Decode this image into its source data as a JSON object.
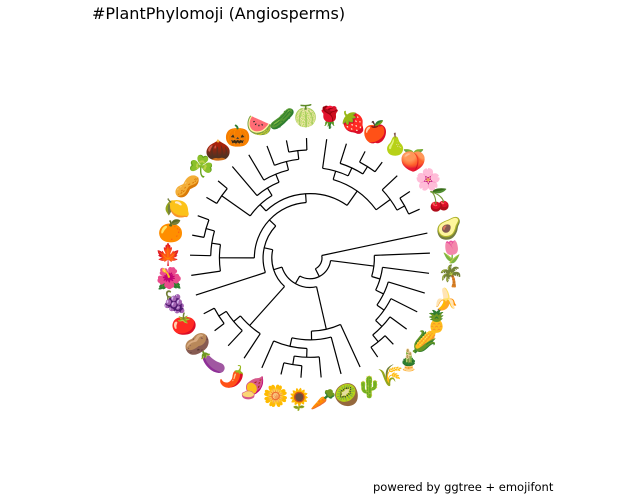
{
  "title": "#PlantPhylomoji (Angiosperms)",
  "caption": "powered by ggtree + emojifont",
  "tips": [
    {
      "id": "avocado",
      "emoji": "🥑"
    },
    {
      "id": "tulip",
      "emoji": "🌷"
    },
    {
      "id": "palm",
      "emoji": "🌴"
    },
    {
      "id": "banana",
      "emoji": "🍌"
    },
    {
      "id": "pineapple",
      "emoji": "🍍"
    },
    {
      "id": "corn",
      "emoji": "🌽"
    },
    {
      "id": "bamboo",
      "emoji": "🎍"
    },
    {
      "id": "rice",
      "emoji": "🌾"
    },
    {
      "id": "cactus",
      "emoji": "🌵"
    },
    {
      "id": "kiwi",
      "emoji": "🥝"
    },
    {
      "id": "carrot",
      "emoji": "🥕"
    },
    {
      "id": "sunflower",
      "emoji": "🌻"
    },
    {
      "id": "daisy",
      "emoji": "🌼"
    },
    {
      "id": "sweet-potato",
      "emoji": "🍠"
    },
    {
      "id": "hot-pepper",
      "emoji": "🌶️"
    },
    {
      "id": "eggplant",
      "emoji": "🍆"
    },
    {
      "id": "potato",
      "emoji": "🥔"
    },
    {
      "id": "tomato",
      "emoji": "🍅"
    },
    {
      "id": "grapes",
      "emoji": "🍇"
    },
    {
      "id": "hibiscus",
      "emoji": "🌺"
    },
    {
      "id": "maple-leaf",
      "emoji": "🍁"
    },
    {
      "id": "orange",
      "emoji": "🍊"
    },
    {
      "id": "lemon",
      "emoji": "🍋"
    },
    {
      "id": "peanuts",
      "emoji": "🥜"
    },
    {
      "id": "shamrock",
      "emoji": "☘️"
    },
    {
      "id": "chestnut",
      "emoji": "🌰"
    },
    {
      "id": "pumpkin",
      "emoji": "🎃"
    },
    {
      "id": "watermelon",
      "emoji": "🍉"
    },
    {
      "id": "cucumber",
      "emoji": "🥒"
    },
    {
      "id": "melon",
      "emoji": "🍈"
    },
    {
      "id": "rose",
      "emoji": "🌹"
    },
    {
      "id": "strawberry",
      "emoji": "🍓"
    },
    {
      "id": "apple",
      "emoji": "🍎"
    },
    {
      "id": "pear",
      "emoji": "🍐"
    },
    {
      "id": "peach",
      "emoji": "🍑"
    },
    {
      "id": "cherry-blossom",
      "emoji": "🌸"
    },
    {
      "id": "cherries",
      "emoji": "🍒"
    }
  ],
  "tree": [
    [
      "avocado",
      [
        [
          "tulip",
          [
            [
              [
                "palm",
                [
                  "banana",
                  [
                    "pineapple",
                    [
                      "corn",
                      [
                        "bamboo",
                        "rice"
                      ]
                    ]
                  ]
                ]
              ]
            ]
          ]
        ],
        [
          [
            "cactus",
            [
              [
                "kiwi",
                [
                  [
                    "carrot",
                    [
                      "sunflower",
                      "daisy"
                    ]
                  ],
                  "sweet-potato"
                ]
              ]
            ]
          ],
          [
            [
              [
                "hot-pepper",
                [
                  "eggplant",
                  [
                    "potato",
                    "tomato"
                  ]
                ]
              ]
            ],
            [
              "grapes",
              [
                [
                  [
                    "hibiscus",
                    [
                      "maple-leaf",
                      [
                        "orange",
                        "lemon"
                      ]
                    ]
                  ]
                ],
                [
                  [
                    [
                      "peanuts",
                      "shamrock"
                    ],
                    [
                      [
                        "chestnut",
                        [
                          "pumpkin",
                          [
                            "watermelon",
                            [
                              "cucumber",
                              "melon"
                            ]
                          ]
                        ]
                      ]
                    ]
                  ],
                  [
                    [
                      "rose",
                      [
                        "strawberry",
                        [
                          "apple",
                          "pear"
                        ]
                      ]
                    ],
                    [
                      "peach",
                      [
                        "cherry-blossom",
                        "cherries"
                      ]
                    ]
                  ]
                ]
              ]
            ]
          ]
        ]
      ]
    ]
  ]
}
